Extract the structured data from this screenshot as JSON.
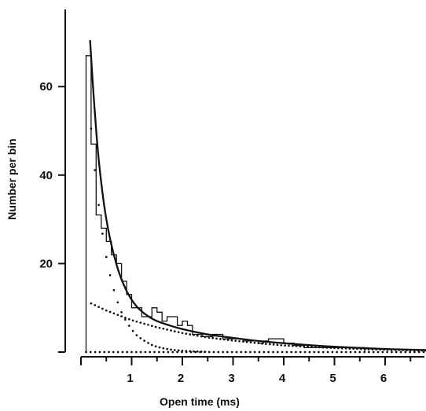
{
  "chart_data": {
    "type": "bar",
    "title": "",
    "xlabel": "Open time (ms)",
    "ylabel": "Number per bin",
    "xlim": [
      0,
      7
    ],
    "ylim": [
      0,
      72
    ],
    "x_ticks": [
      1,
      2,
      3,
      4,
      5,
      6
    ],
    "y_ticks": [
      20,
      40,
      60
    ],
    "histogram": {
      "bin_width_ms": 0.1,
      "bin_edges": [
        0.1,
        0.2,
        0.3,
        0.4,
        0.5,
        0.6,
        0.7,
        0.8,
        0.9,
        1.0,
        1.1,
        1.2,
        1.3,
        1.4,
        1.5,
        1.6,
        1.7,
        1.8,
        1.9,
        2.0,
        2.1,
        2.2,
        2.3,
        2.4,
        2.5,
        2.6,
        2.7,
        2.8,
        2.9,
        3.0,
        3.1,
        3.2,
        3.3,
        3.4,
        3.5,
        3.6,
        3.7,
        3.8,
        3.9,
        4.0,
        4.1,
        4.2,
        4.3,
        4.4,
        4.5,
        4.6,
        4.7,
        4.8,
        4.9,
        5.0,
        5.1,
        5.2,
        5.3,
        5.4,
        5.5,
        5.6
      ],
      "counts": [
        67,
        47,
        31,
        28,
        25,
        22,
        20,
        16,
        13,
        10,
        10,
        8,
        8,
        10,
        9,
        7,
        8,
        8,
        6,
        7,
        6,
        4,
        4,
        3.5,
        3.5,
        4,
        4,
        3,
        3,
        3,
        3,
        2.5,
        2.5,
        2.5,
        2,
        2.5,
        3,
        3,
        3,
        2,
        2,
        1.5,
        1.5,
        1,
        1,
        1,
        1,
        1,
        1,
        1,
        1,
        1,
        1,
        1,
        1
      ]
    },
    "series": [
      {
        "name": "",
        "style": "solid",
        "x": [
          0.18,
          0.25,
          0.35,
          0.5,
          0.7,
          0.9,
          1.1,
          1.3,
          1.5,
          1.75,
          2.0,
          2.5,
          3.0,
          3.5,
          4.0,
          5.0,
          6.0,
          7.0
        ],
        "y": [
          70.5,
          58,
          43.5,
          30,
          19.8,
          13.8,
          10.3,
          8.3,
          7.0,
          6.0,
          5.2,
          4.0,
          3.2,
          2.5,
          2.0,
          1.2,
          0.7,
          0.4
        ]
      },
      {
        "name": "",
        "style": "dotted",
        "x": [
          0.2,
          0.3,
          0.4,
          0.5,
          0.6,
          0.7,
          0.8,
          0.9,
          1.0,
          1.1,
          1.2,
          1.3,
          1.4,
          1.5,
          1.6,
          1.8,
          2.0,
          2.2,
          2.5
        ],
        "y": [
          50.5,
          38,
          28.5,
          21.5,
          16,
          12,
          9,
          6.8,
          5.1,
          3.8,
          2.9,
          2.2,
          1.6,
          1.2,
          0.9,
          0.5,
          0.3,
          0.15,
          0.05
        ]
      },
      {
        "name": "",
        "style": "dotted",
        "x": [
          0.2,
          0.5,
          1.0,
          1.5,
          2.0,
          2.5,
          3.0,
          3.5,
          4.0,
          4.5,
          5.0,
          5.5,
          6.0,
          6.5,
          7.0
        ],
        "y": [
          11,
          9.4,
          7.2,
          5.6,
          4.3,
          3.3,
          2.6,
          2.0,
          1.5,
          1.2,
          0.9,
          0.7,
          0.55,
          0.4,
          0.3
        ]
      },
      {
        "name": "",
        "style": "dotted",
        "x": [
          0.1,
          7.0
        ],
        "y": [
          0,
          0
        ]
      }
    ]
  }
}
